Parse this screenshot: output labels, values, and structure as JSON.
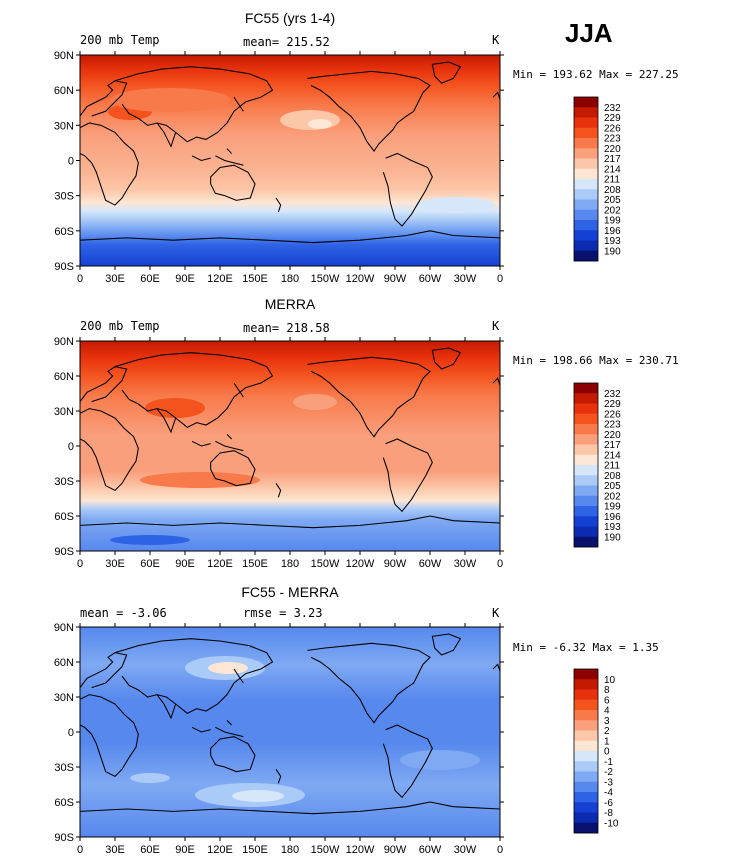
{
  "season": "JJA",
  "chart_data": [
    {
      "type": "heatmap",
      "title": "FC55 (yrs 1-4)",
      "left_label": "200 mb Temp",
      "mean_text": "mean= 215.52",
      "units": "K",
      "stats_text": "Min = 193.62 Max = 227.25",
      "min": 193.62,
      "max": 227.25,
      "x_ticks": [
        "0",
        "30E",
        "60E",
        "90E",
        "120E",
        "150E",
        "180",
        "150W",
        "120W",
        "90W",
        "60W",
        "30W",
        "0"
      ],
      "y_ticks": [
        "90N",
        "60N",
        "30N",
        "0",
        "30S",
        "60S",
        "90S"
      ],
      "colorbar": {
        "labels": [
          "232",
          "229",
          "226",
          "223",
          "220",
          "217",
          "214",
          "211",
          "208",
          "205",
          "202",
          "199",
          "196",
          "193",
          "190"
        ],
        "colors": [
          "#8c0000",
          "#c41a00",
          "#e8320e",
          "#f4531e",
          "#f87a4a",
          "#fa9f7c",
          "#fcc7a8",
          "#fde6d4",
          "#d6e7fb",
          "#aacbf7",
          "#7fa9f2",
          "#5688ee",
          "#2f63e6",
          "#1441d4",
          "#0b2bb0",
          "#08126e"
        ]
      }
    },
    {
      "type": "heatmap",
      "title": "MERRA",
      "left_label": "200 mb Temp",
      "mean_text": "mean= 218.58",
      "units": "K",
      "stats_text": "Min = 198.66 Max = 230.71",
      "min": 198.66,
      "max": 230.71,
      "x_ticks": [
        "0",
        "30E",
        "60E",
        "90E",
        "120E",
        "150E",
        "180",
        "150W",
        "120W",
        "90W",
        "60W",
        "30W",
        "0"
      ],
      "y_ticks": [
        "90N",
        "60N",
        "30N",
        "0",
        "30S",
        "60S",
        "90S"
      ],
      "colorbar": {
        "labels": [
          "232",
          "229",
          "226",
          "223",
          "220",
          "217",
          "214",
          "211",
          "208",
          "205",
          "202",
          "199",
          "196",
          "193",
          "190"
        ],
        "colors": [
          "#8c0000",
          "#c41a00",
          "#e8320e",
          "#f4531e",
          "#f87a4a",
          "#fa9f7c",
          "#fcc7a8",
          "#fde6d4",
          "#d6e7fb",
          "#aacbf7",
          "#7fa9f2",
          "#5688ee",
          "#2f63e6",
          "#1441d4",
          "#0b2bb0",
          "#08126e"
        ]
      }
    },
    {
      "type": "heatmap",
      "title": "FC55 - MERRA",
      "mean_text": "mean = -3.06",
      "rmse_text": "rmse = 3.23",
      "units": "K",
      "stats_text": "Min = -6.32 Max = 1.35",
      "min": -6.32,
      "max": 1.35,
      "x_ticks": [
        "0",
        "30E",
        "60E",
        "90E",
        "120E",
        "150E",
        "180",
        "150W",
        "120W",
        "90W",
        "60W",
        "30W",
        "0"
      ],
      "y_ticks": [
        "90N",
        "60N",
        "30N",
        "0",
        "30S",
        "60S",
        "90S"
      ],
      "colorbar": {
        "labels": [
          "10",
          "8",
          "6",
          "4",
          "3",
          "2",
          "1",
          "0",
          "-1",
          "-2",
          "-3",
          "-4",
          "-6",
          "-8",
          "-10"
        ],
        "colors": [
          "#8c0000",
          "#c41a00",
          "#e8320e",
          "#f4531e",
          "#f87a4a",
          "#fa9f7c",
          "#fcc7a8",
          "#fde6d4",
          "#d6e7fb",
          "#aacbf7",
          "#7fa9f2",
          "#5688ee",
          "#2f63e6",
          "#1441d4",
          "#0b2bb0",
          "#08126e"
        ]
      }
    }
  ]
}
